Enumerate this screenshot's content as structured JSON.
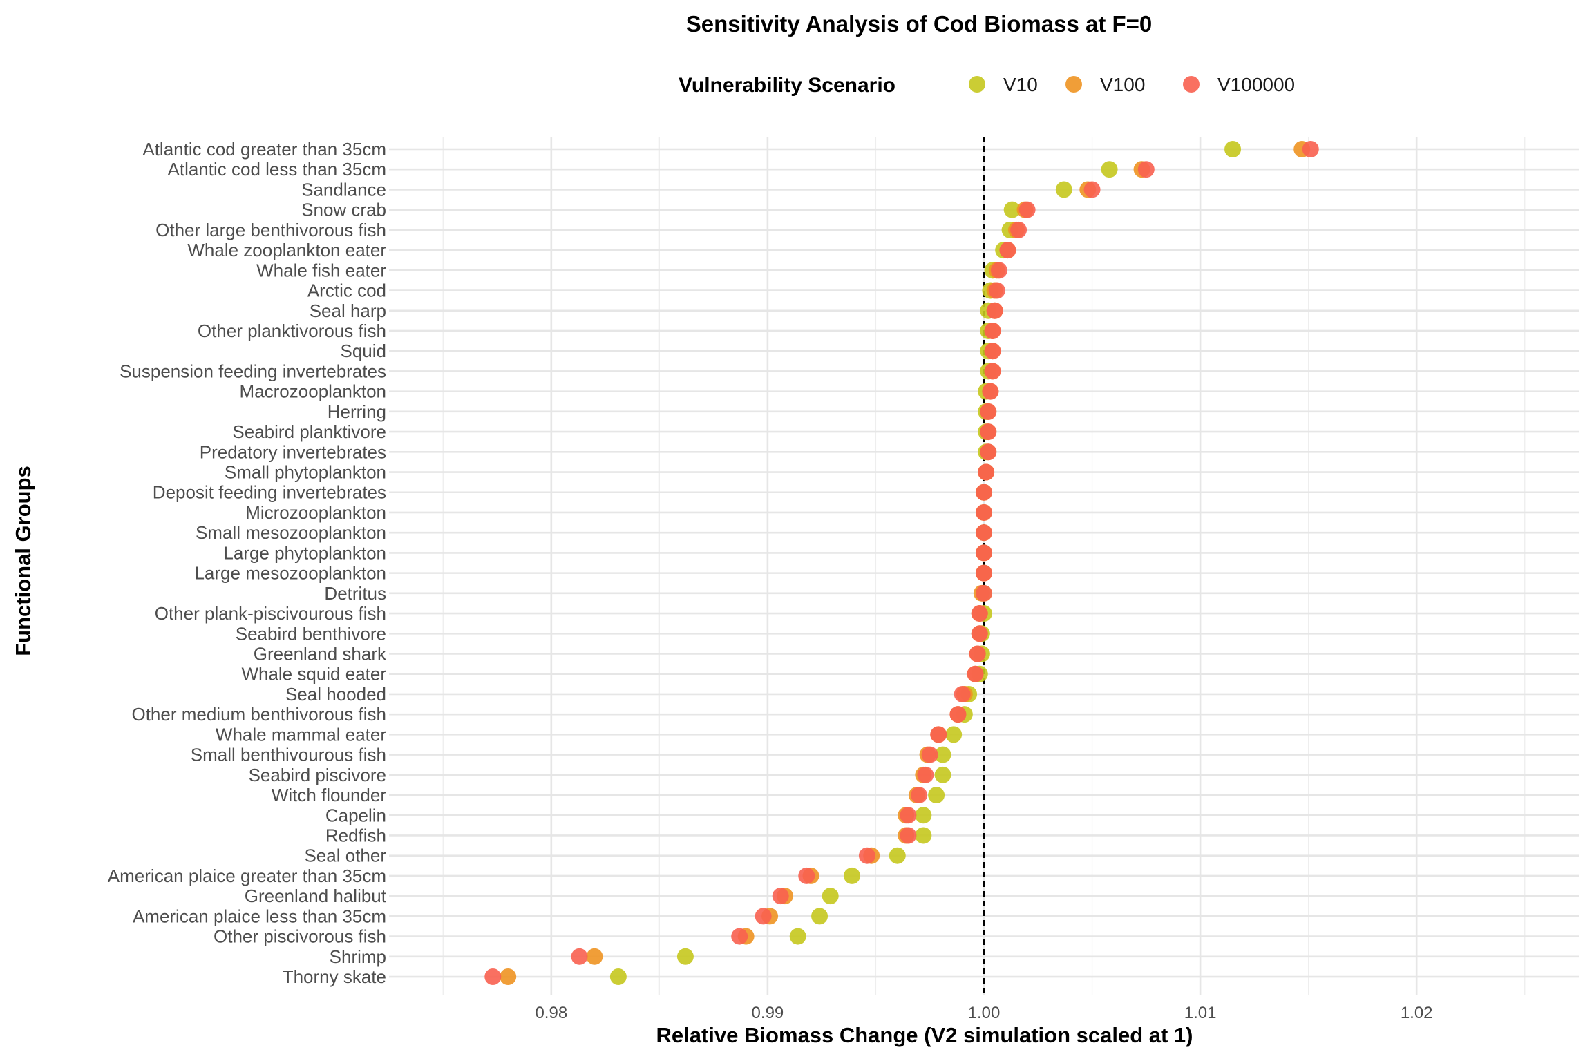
{
  "chart_data": {
    "type": "scatter",
    "title": "Sensitivity Analysis of Cod Biomass at F=0",
    "xlabel": "Relative Biomass Change (V2 simulation scaled at 1)",
    "ylabel": "Functional Groups",
    "xlim": [
      0.9725,
      1.0275
    ],
    "x_ticks": [
      "0.98",
      "0.99",
      "1.00",
      "1.01",
      "1.02"
    ],
    "reference_line": 1.0,
    "grid": true,
    "legend_title": "Vulnerability Scenario",
    "legend_position": "top",
    "categories": [
      "Atlantic cod greater than 35cm",
      "Atlantic cod less than 35cm",
      "Sandlance",
      "Snow crab",
      "Other large benthivorous fish",
      "Whale zooplankton eater",
      "Whale fish eater",
      "Arctic cod",
      "Seal harp",
      "Other planktivorous fish",
      "Squid",
      "Suspension feeding invertebrates",
      "Macrozooplankton",
      "Herring",
      "Seabird planktivore",
      "Predatory invertebrates",
      "Small phytoplankton",
      "Deposit feeding invertebrates",
      "Microzooplankton",
      "Small mesozooplankton",
      "Large phytoplankton",
      "Large mesozooplankton",
      "Detritus",
      "Other plank-piscivourous fish",
      "Seabird benthivore",
      "Greenland shark",
      "Whale squid eater",
      "Seal hooded",
      "Other medium benthivorous fish",
      "Whale mammal eater",
      "Small benthivourous fish",
      "Seabird piscivore",
      "Witch flounder",
      "Capelin",
      "Redfish",
      "Seal other",
      "American plaice greater than 35cm",
      "Greenland halibut",
      "American plaice less than 35cm",
      "Other piscivorous fish",
      "Shrimp",
      "Thorny skate"
    ],
    "series": [
      {
        "name": "V10",
        "color": "#C5C81E",
        "values": [
          1.0115,
          1.0058,
          1.0037,
          1.0013,
          1.0012,
          1.0009,
          1.0004,
          1.0003,
          1.0002,
          1.0002,
          1.0002,
          1.0002,
          1.0001,
          1.0001,
          1.0001,
          1.0001,
          1.0001,
          1.0,
          1.0,
          1.0,
          1.0,
          1.0,
          1.0,
          1.0,
          0.9999,
          0.9999,
          0.9998,
          0.9993,
          0.9991,
          0.9986,
          0.9981,
          0.9981,
          0.9978,
          0.9972,
          0.9972,
          0.996,
          0.9939,
          0.9929,
          0.9924,
          0.9914,
          0.9862,
          0.9831
        ]
      },
      {
        "name": "V100",
        "color": "#EE9422",
        "values": [
          1.0147,
          1.0073,
          1.0048,
          1.0019,
          1.0015,
          1.0011,
          1.0006,
          1.0005,
          1.0005,
          1.0004,
          1.0004,
          1.0004,
          1.0003,
          1.0002,
          1.0002,
          1.0002,
          1.0001,
          1.0,
          1.0,
          1.0,
          1.0,
          1.0,
          0.9999,
          0.9998,
          0.9998,
          0.9997,
          0.9996,
          0.9991,
          0.9988,
          0.9979,
          0.9974,
          0.9972,
          0.9969,
          0.9964,
          0.9964,
          0.9948,
          0.992,
          0.9908,
          0.9901,
          0.989,
          0.982,
          0.978
        ]
      },
      {
        "name": "V100000",
        "color": "#F86050",
        "values": [
          1.0151,
          1.0075,
          1.005,
          1.002,
          1.0016,
          1.0011,
          1.0007,
          1.0006,
          1.0005,
          1.0004,
          1.0004,
          1.0004,
          1.0003,
          1.0002,
          1.0002,
          1.0002,
          1.0001,
          1.0,
          1.0,
          1.0,
          1.0,
          1.0,
          1.0,
          0.9998,
          0.9998,
          0.9997,
          0.9996,
          0.999,
          0.9988,
          0.9979,
          0.9975,
          0.9973,
          0.997,
          0.9965,
          0.9965,
          0.9946,
          0.9918,
          0.9906,
          0.9898,
          0.9887,
          0.9813,
          0.9773
        ]
      }
    ]
  }
}
